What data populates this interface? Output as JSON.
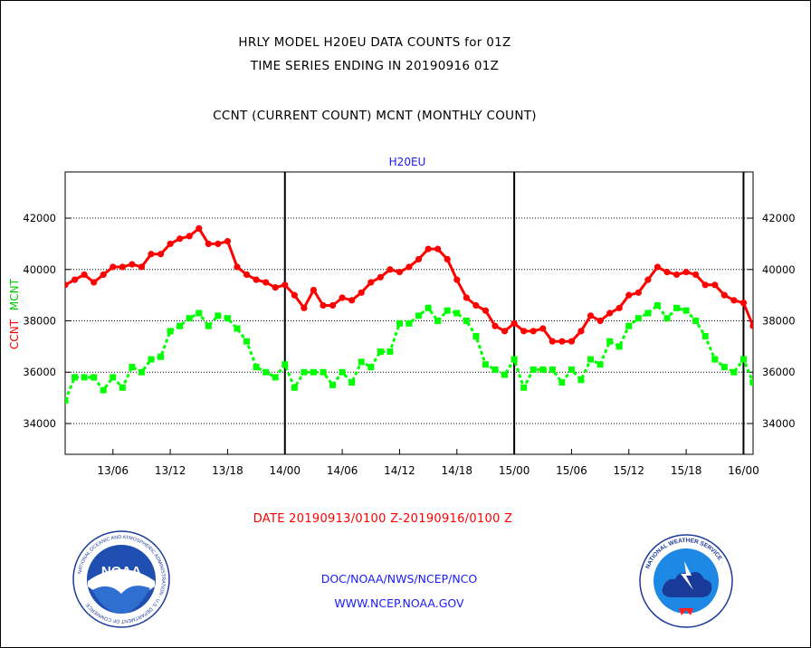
{
  "header": {
    "title_line1": "HRLY MODEL H20EU DATA COUNTS for 01Z",
    "title_line2": "TIME SERIES ENDING IN 20190916 01Z",
    "title_line3": "CCNT (CURRENT COUNT) MCNT (MONTHLY COUNT)"
  },
  "footer": {
    "date_range": "DATE 20190913/0100 Z-20190916/0100 Z",
    "org_line": "DOC/NOAA/NWS/NCEP/NCO",
    "url": "WWW.NCEP.NOAA.GOV"
  },
  "logos": {
    "noaa_text": "NOAA",
    "noaa_ring_text": "NATIONAL OCEANIC AND ATMOSPHERIC ADMINISTRATION · U.S. DEPARTMENT OF COMMERCE",
    "nws_ring_text": "NATIONAL WEATHER SERVICE"
  },
  "chart_data": {
    "type": "line",
    "title": "H20EU",
    "ylabel_ccnt": "CCNT",
    "ylabel_mcnt": "MCNT",
    "ylim": [
      32800,
      43800
    ],
    "yticks": [
      34000,
      36000,
      38000,
      40000,
      42000
    ],
    "ytick_labels": [
      "34000",
      "36000",
      "38000",
      "40000",
      "42000"
    ],
    "x_unit": "hours since 20190913/0000 Z",
    "xlim": [
      1,
      73
    ],
    "xticks": [
      6,
      12,
      18,
      24,
      30,
      36,
      42,
      48,
      54,
      60,
      66,
      72
    ],
    "xtick_labels": [
      "13/06",
      "13/12",
      "13/18",
      "14/00",
      "14/06",
      "14/12",
      "14/18",
      "15/00",
      "15/06",
      "15/12",
      "15/18",
      "16/00"
    ],
    "day_separators": [
      24,
      48,
      72
    ],
    "grid": true,
    "colors": {
      "ccnt": "#ff0000",
      "mcnt": "#00ff00",
      "ccnt_label": "#ff0000",
      "mcnt_label": "#00cc00",
      "title": "#1a1aff"
    },
    "series": [
      {
        "name": "CCNT",
        "values": [
          39400,
          39600,
          39800,
          39500,
          39800,
          40100,
          40100,
          40200,
          40100,
          40600,
          40600,
          41000,
          41200,
          41300,
          41600,
          41000,
          41000,
          41100,
          40100,
          39800,
          39600,
          39500,
          39300,
          39400,
          39000,
          38500,
          39200,
          38600,
          38600,
          38900,
          38800,
          39100,
          39500,
          39700,
          40000,
          39900,
          40100,
          40400,
          40800,
          40800,
          40400,
          39600,
          38900,
          38600,
          38400,
          37800,
          37600,
          37900,
          37600,
          37600,
          37700,
          37200,
          37200,
          37200,
          37600,
          38200,
          38000,
          38300,
          38500,
          39000,
          39100,
          39600,
          40100,
          39900,
          39800,
          39900,
          39800,
          39400,
          39400,
          39000,
          38800,
          38700,
          37800
        ]
      },
      {
        "name": "MCNT",
        "values": [
          34900,
          35800,
          35800,
          35800,
          35300,
          35800,
          35400,
          36200,
          36000,
          36500,
          36600,
          37600,
          37800,
          38100,
          38300,
          37800,
          38200,
          38100,
          37700,
          37200,
          36200,
          36000,
          35800,
          36300,
          35400,
          36000,
          36000,
          36000,
          35500,
          36000,
          35600,
          36400,
          36200,
          36800,
          36800,
          37900,
          37900,
          38200,
          38500,
          38000,
          38400,
          38300,
          38000,
          37400,
          36300,
          36100,
          35900,
          36500,
          35400,
          36100,
          36100,
          36100,
          35600,
          36100,
          35700,
          36500,
          36300,
          37200,
          37000,
          37800,
          38100,
          38300,
          38600,
          38100,
          38500,
          38400,
          38000,
          37400,
          36500,
          36200,
          36000,
          36500,
          35600
        ]
      }
    ]
  }
}
